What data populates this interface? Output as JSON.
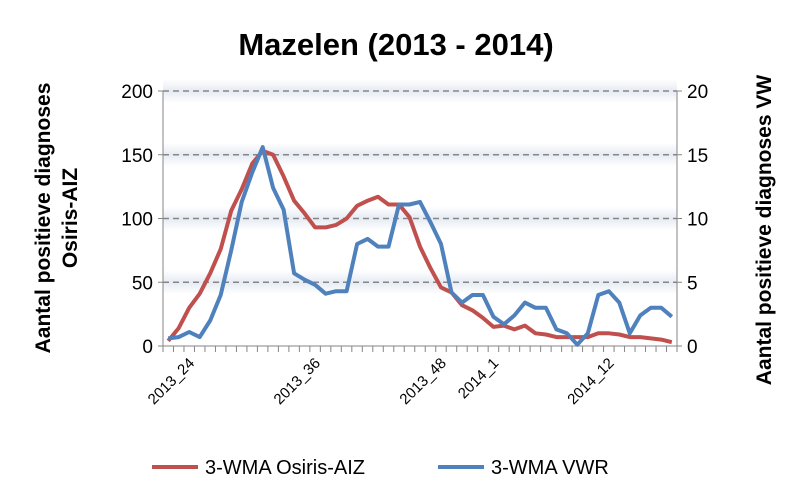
{
  "chart_data": {
    "type": "line",
    "title": "Mazelen (2013 - 2014)",
    "xlabel": "",
    "ylabel": [
      "Aantal positieve diagnoses",
      "Osiris-AIZ"
    ],
    "y2label": "Aantal positieve diagnoses VW",
    "ylim": [
      0,
      200
    ],
    "y2lim": [
      0,
      20
    ],
    "yticks": [
      0,
      50,
      100,
      150,
      200
    ],
    "y2ticks": [
      0,
      5,
      10,
      15,
      20
    ],
    "grid": true,
    "legend_position": "bottom",
    "x_tick_labels": [
      {
        "index": 2,
        "label": "2013_24"
      },
      {
        "index": 14,
        "label": "2013_36"
      },
      {
        "index": 26,
        "label": "2013_48"
      },
      {
        "index": 31,
        "label": "2014_1"
      },
      {
        "index": 42,
        "label": "2014_12"
      }
    ],
    "series": [
      {
        "name": "3-WMA Osiris-AIZ",
        "axis": "left",
        "color": "#C0504D",
        "values": [
          4,
          14,
          30,
          41,
          57,
          76,
          106,
          123,
          143,
          153,
          150,
          133,
          114,
          104,
          93,
          93,
          95,
          100,
          110,
          114,
          117,
          111,
          111,
          101,
          78,
          61,
          46,
          42,
          32,
          28,
          22,
          15,
          16,
          13,
          16,
          10,
          9,
          7,
          7,
          7,
          7,
          10,
          10,
          9,
          7,
          7,
          6,
          5,
          3
        ]
      },
      {
        "name": "3-WMA VWR",
        "axis": "right",
        "color": "#4F81BD",
        "values": [
          0.6,
          0.7,
          1.1,
          0.7,
          2.0,
          4.0,
          7.5,
          11.3,
          13.6,
          15.6,
          12.4,
          10.7,
          5.7,
          5.2,
          4.8,
          4.1,
          4.3,
          4.3,
          8.0,
          8.4,
          7.8,
          7.8,
          11.1,
          11.1,
          11.3,
          9.7,
          8.0,
          4.2,
          3.4,
          4.0,
          4.0,
          2.3,
          1.7,
          2.4,
          3.4,
          3.0,
          3.0,
          1.3,
          1.0,
          0.1,
          1.0,
          4.0,
          4.3,
          3.4,
          1.0,
          2.4,
          3.0,
          3.0,
          2.3
        ]
      }
    ]
  }
}
